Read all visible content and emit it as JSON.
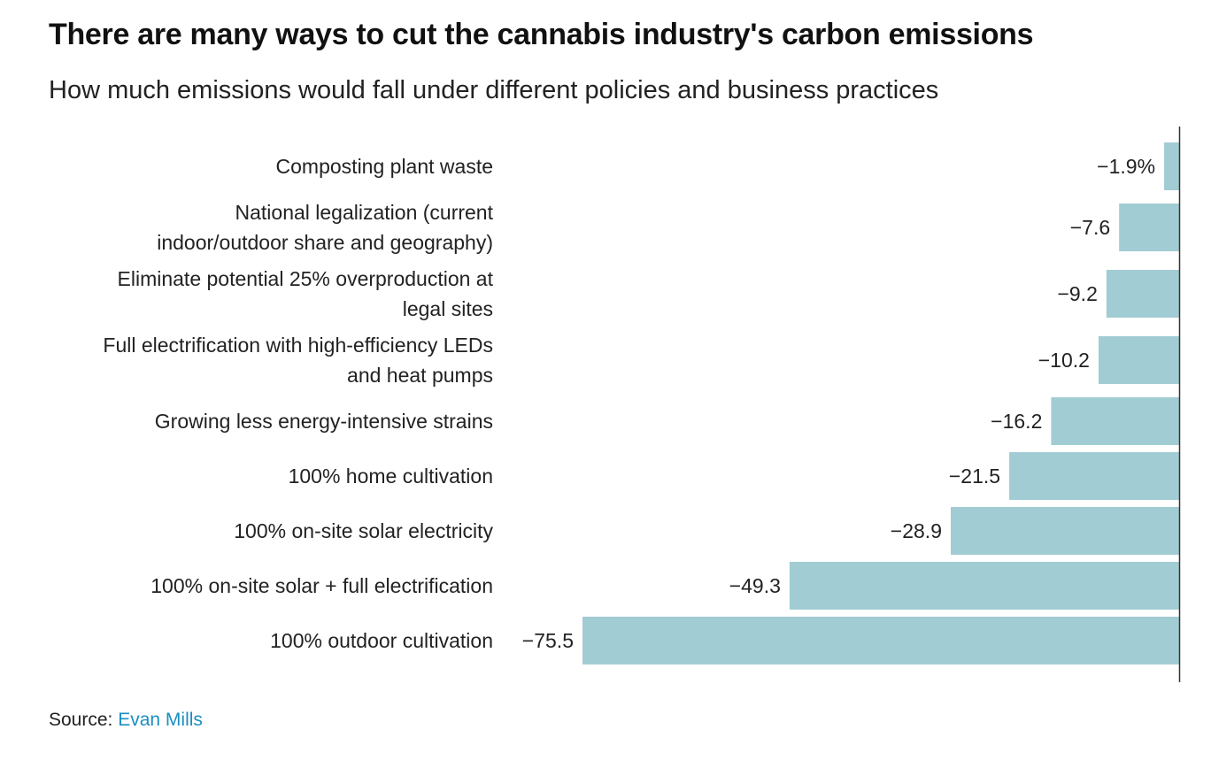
{
  "header": {
    "title": "There are many ways to cut the cannabis industry's carbon emissions",
    "subtitle": "How much emissions would fall under different policies and business practices"
  },
  "footer": {
    "source_label": "Source:",
    "source_link": "Evan Mills"
  },
  "colors": {
    "bar": "#a2ccd3",
    "axis": "#333333",
    "text": "#222222",
    "link": "#1a8fc0"
  },
  "chart_data": {
    "type": "bar",
    "orientation": "horizontal",
    "title": "There are many ways to cut the cannabis industry's carbon emissions",
    "subtitle": "How much emissions would fall under different policies and business practices",
    "categories": [
      [
        "Composting plant waste"
      ],
      [
        "National legalization (current",
        "indoor/outdoor share and geography)"
      ],
      [
        "Eliminate potential 25% overproduction at",
        "legal sites"
      ],
      [
        "Full electrification with high-efficiency LEDs",
        "and heat pumps"
      ],
      [
        "Growing less energy-intensive strains"
      ],
      [
        "100% home cultivation"
      ],
      [
        "100% on-site solar electricity"
      ],
      [
        "100% on-site solar + full electrification"
      ],
      [
        "100% outdoor cultivation"
      ]
    ],
    "values": [
      -1.9,
      -7.6,
      -9.2,
      -10.2,
      -16.2,
      -21.5,
      -28.9,
      -49.3,
      -75.5
    ],
    "value_labels": [
      "−1.9%",
      "−7.6",
      "−9.2",
      "−10.2",
      "−16.2",
      "−21.5",
      "−28.9",
      "−49.3",
      "−75.5"
    ],
    "unit": "%",
    "xlim": [
      -75.5,
      0
    ],
    "grid": false,
    "legend": "none"
  }
}
